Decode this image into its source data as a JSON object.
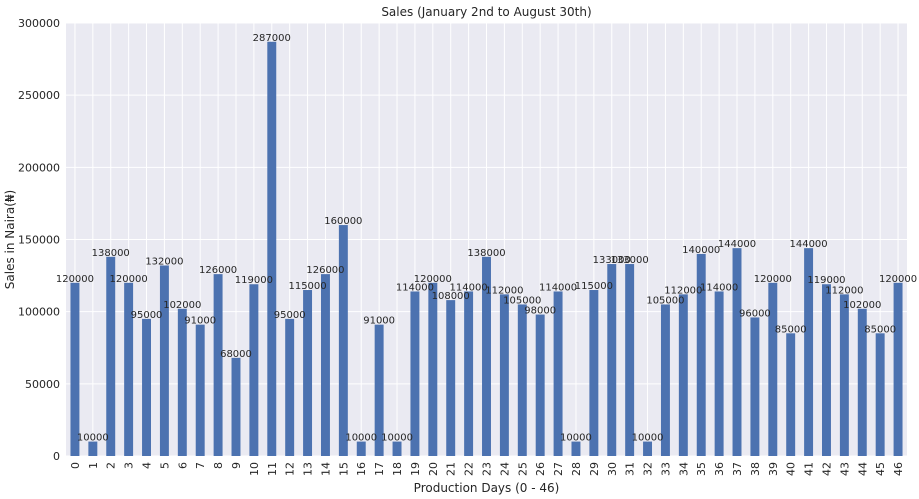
{
  "chart_data": {
    "type": "bar",
    "title": "Sales (January 2nd to August 30th)",
    "xlabel": "Production Days (0 - 46)",
    "ylabel": "Sales in Naira(₦)",
    "categories": [
      "0",
      "1",
      "2",
      "3",
      "4",
      "5",
      "6",
      "7",
      "8",
      "9",
      "10",
      "11",
      "12",
      "13",
      "14",
      "15",
      "16",
      "17",
      "18",
      "19",
      "20",
      "21",
      "22",
      "23",
      "24",
      "25",
      "26",
      "27",
      "28",
      "29",
      "30",
      "31",
      "32",
      "33",
      "34",
      "35",
      "36",
      "37",
      "38",
      "39",
      "40",
      "41",
      "42",
      "43",
      "44",
      "45",
      "46"
    ],
    "values": [
      120000,
      10000,
      138000,
      120000,
      95000,
      132000,
      102000,
      91000,
      126000,
      68000,
      119000,
      287000,
      95000,
      115000,
      126000,
      160000,
      10000,
      91000,
      10000,
      114000,
      120000,
      108000,
      114000,
      138000,
      112000,
      105000,
      98000,
      114000,
      10000,
      115000,
      133000,
      133000,
      10000,
      105000,
      112000,
      140000,
      114000,
      144000,
      96000,
      120000,
      85000,
      144000,
      119000,
      112000,
      102000,
      85000,
      120000
    ],
    "ylim": [
      0,
      300000
    ],
    "yticks": [
      0,
      50000,
      100000,
      150000,
      200000,
      250000,
      300000
    ],
    "grid": true,
    "legend": "none",
    "colors": {
      "bar": "#4c72b0",
      "background": "#eaeaf2",
      "grid": "#ffffff",
      "text": "#262626"
    }
  }
}
